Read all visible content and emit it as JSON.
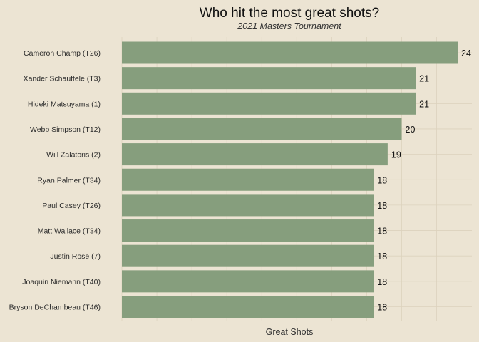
{
  "chart_data": {
    "type": "bar",
    "orientation": "horizontal",
    "title": "Who hit the most great shots?",
    "subtitle": "2021 Masters Tournament",
    "xlabel": "Great Shots",
    "ylabel": "",
    "categories": [
      "Cameron Champ (T26)",
      "Xander Schauffele (T3)",
      "Hideki Matsuyama (1)",
      "Webb Simpson (T12)",
      "Will Zalatoris (2)",
      "Ryan Palmer (T34)",
      "Paul Casey (T26)",
      "Matt Wallace (T34)",
      "Justin Rose (7)",
      "Joaquin Niemann (T40)",
      "Bryson DeChambeau (T46)"
    ],
    "values": [
      24,
      21,
      21,
      20,
      19,
      18,
      18,
      18,
      18,
      18,
      18
    ],
    "xlim": [
      0,
      24.6
    ],
    "x_tick_labels_shown": false,
    "grid": true,
    "legend": "none",
    "colors": {
      "bar": "#869e7d",
      "background": "#ece4d3"
    }
  }
}
